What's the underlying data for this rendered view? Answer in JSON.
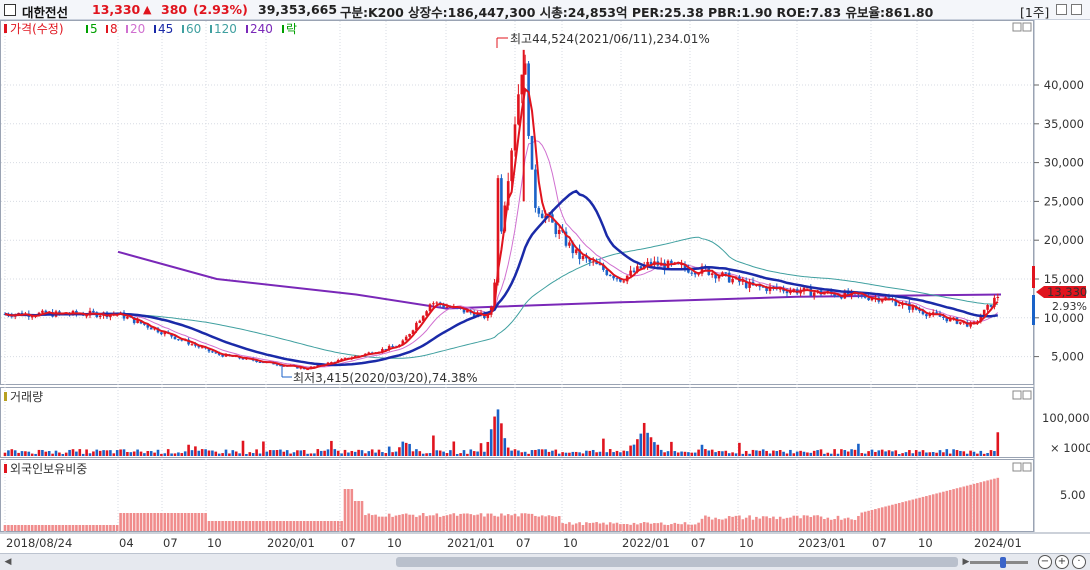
{
  "header": {
    "stock_name": "대한전선",
    "price": "13,330",
    "change_arrow": "▲",
    "change": "380",
    "change_pct": "(2.93%)",
    "volume": "39,353,665",
    "info": "구분:K200 상장수:186,447,300 시총:24,853억 PER:25.38 PBR:1.90 ROE:7.83 유보율:861.80",
    "period": "[1주]"
  },
  "price_legend": {
    "label": "가격(수정)",
    "ma": [
      {
        "label": "5",
        "color": "#00a000"
      },
      {
        "label": "8",
        "color": "#e0141e"
      },
      {
        "label": "20",
        "color": "#d070d0"
      },
      {
        "label": "45",
        "color": "#1a2aa8"
      },
      {
        "label": "60",
        "color": "#40a0a0"
      },
      {
        "label": "120",
        "color": "#40a0a0"
      },
      {
        "label": "240",
        "color": "#7a28b8"
      },
      {
        "label": "락",
        "color": "#00a000"
      }
    ]
  },
  "annotations": {
    "high": "최고44,524(2021/06/11),234.01%",
    "low": "최저3,415(2020/03/20),74.38%"
  },
  "price_axis": {
    "ticks": [
      "40,000",
      "35,000",
      "30,000",
      "25,000",
      "20,000",
      "15,000",
      "10,000",
      "5,000"
    ],
    "current_price_tag": "13,330",
    "current_pct_tag": "2.93%"
  },
  "volume_panel": {
    "label": "거래량",
    "ticks": [
      "100,000"
    ],
    "unit": "× 1000"
  },
  "foreign_panel": {
    "label": "외국인보유비중",
    "ticks": [
      "5.00"
    ]
  },
  "x_axis": {
    "labels": [
      "2018/08/24",
      "04",
      "07",
      "10",
      "2020/01",
      "07",
      "10",
      "2021/01",
      "07",
      "10",
      "2022/01",
      "07",
      "10",
      "2023/01",
      "07",
      "10",
      "2024/01"
    ]
  },
  "colors": {
    "up": "#e0141e",
    "down": "#1a62c8",
    "ma8": "#e0141e",
    "ma20": "#d070d0",
    "ma45": "#1a2aa8",
    "ma120": "#40a0a0",
    "ma240": "#7a28b8",
    "foreign_bar": "#f08c8c"
  },
  "chart_data": {
    "type": "candlestick",
    "price_ylim": [
      3000,
      46000
    ],
    "key_points": [
      {
        "date": "2018/08/24",
        "price": 10500
      },
      {
        "date": "2019/04",
        "price": 10500
      },
      {
        "date": "2019/10",
        "price": 5300
      },
      {
        "date": "2020/03/20",
        "price": 3415
      },
      {
        "date": "2020/10",
        "price": 6500
      },
      {
        "date": "2020/12",
        "price": 12000
      },
      {
        "date": "2021/04",
        "price": 10000
      },
      {
        "date": "2021/06/11",
        "price": 44524
      },
      {
        "date": "2021/07",
        "price": 25000
      },
      {
        "date": "2021/10",
        "price": 18000
      },
      {
        "date": "2022/01",
        "price": 15000
      },
      {
        "date": "2022/03",
        "price": 17000
      },
      {
        "date": "2022/07",
        "price": 16000
      },
      {
        "date": "2022/10",
        "price": 14000
      },
      {
        "date": "2023/01",
        "price": 13500
      },
      {
        "date": "2023/07",
        "price": 12500
      },
      {
        "date": "2023/10",
        "price": 10500
      },
      {
        "date": "2024/01",
        "price": 9000
      },
      {
        "date": "2024/03",
        "price": 13330
      }
    ],
    "ma240": [
      {
        "date": "2019/04",
        "price": 18500
      },
      {
        "date": "2019/10",
        "price": 15000
      },
      {
        "date": "2020/07",
        "price": 13000
      },
      {
        "date": "2021/01",
        "price": 11200
      },
      {
        "date": "2022/01",
        "price": 12000
      },
      {
        "date": "2023/01",
        "price": 12700
      },
      {
        "date": "2024/03",
        "price": 13000
      }
    ],
    "volume_ticks": [
      100000
    ],
    "foreign_ownership_ticks": [
      5.0
    ]
  }
}
